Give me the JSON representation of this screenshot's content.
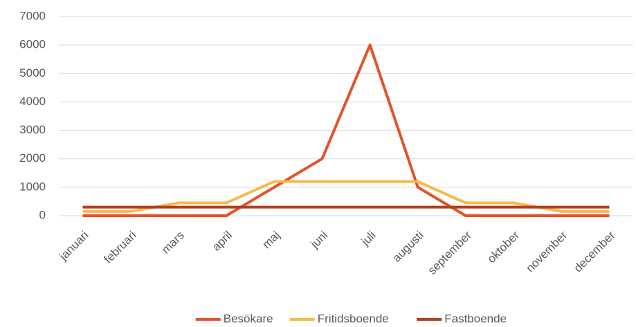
{
  "chart_data": {
    "type": "line",
    "categories": [
      "januari",
      "februari",
      "mars",
      "april",
      "maj",
      "juni",
      "juli",
      "augusti",
      "september",
      "oktober",
      "november",
      "december"
    ],
    "series": [
      {
        "name": "Besökare",
        "color": "#e2532b",
        "values": [
          0,
          0,
          0,
          0,
          1000,
          2000,
          6000,
          1000,
          0,
          0,
          0,
          0
        ]
      },
      {
        "name": "Fritidsboende",
        "color": "#f9b84a",
        "values": [
          150,
          150,
          450,
          450,
          1200,
          1200,
          1200,
          1200,
          450,
          450,
          150,
          150
        ]
      },
      {
        "name": "Fastboende",
        "color": "#b0401e",
        "values": [
          300,
          300,
          300,
          300,
          300,
          300,
          300,
          300,
          300,
          300,
          300,
          300
        ]
      }
    ],
    "ylim": [
      0,
      7000
    ],
    "yticks": [
      0,
      1000,
      2000,
      3000,
      4000,
      5000,
      6000,
      7000
    ],
    "grid": true,
    "legend": "bottom"
  }
}
